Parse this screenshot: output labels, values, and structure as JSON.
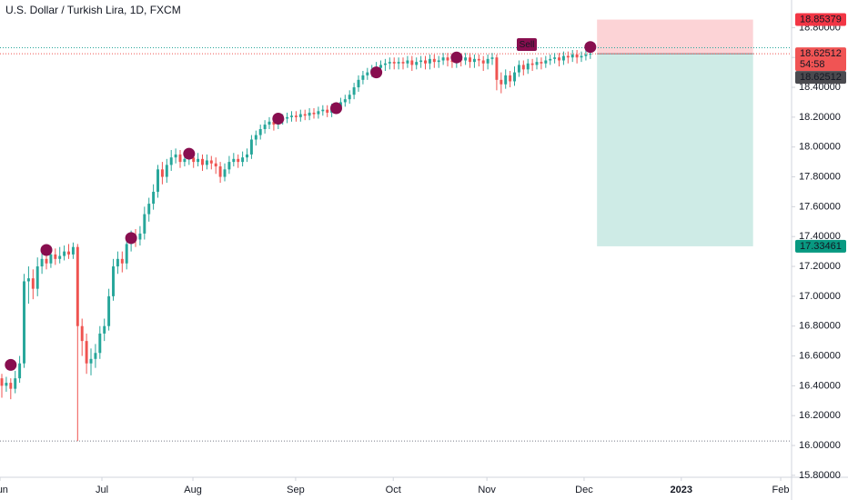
{
  "chart_data": {
    "type": "candlestick",
    "title": "U.S. Dollar / Turkish Lira, 1D, FXCM",
    "up_color": "#26a69a",
    "down_color": "#ef5350",
    "xlim": [
      -0.41,
      177.14
    ],
    "ylim": [
      15.787,
      18.985
    ],
    "xticks": [
      {
        "value": -0.4,
        "label": "Jun"
      },
      {
        "value": 22.45,
        "label": "Jul"
      },
      {
        "value": 42.86,
        "label": "Aug"
      },
      {
        "value": 65.9,
        "label": "Sep"
      },
      {
        "value": 87.8,
        "label": "Oct"
      },
      {
        "value": 108.8,
        "label": "Nov"
      },
      {
        "value": 130.6,
        "label": "Dec"
      },
      {
        "value": 152.4,
        "label": "2023"
      },
      {
        "value": 174.7,
        "label": "Feb"
      }
    ],
    "yticks": [
      {
        "value": 15.8,
        "label": "15.80000"
      },
      {
        "value": 16.0,
        "label": "16.00000"
      },
      {
        "value": 16.2,
        "label": "16.20000"
      },
      {
        "value": 16.4,
        "label": "16.40000"
      },
      {
        "value": 16.6,
        "label": "16.60000"
      },
      {
        "value": 16.8,
        "label": "16.80000"
      },
      {
        "value": 17.0,
        "label": "17.00000"
      },
      {
        "value": 17.2,
        "label": "17.20000"
      },
      {
        "value": 17.4,
        "label": "17.40000"
      },
      {
        "value": 17.6,
        "label": "17.60000"
      },
      {
        "value": 17.8,
        "label": "17.80000"
      },
      {
        "value": 18.0,
        "label": "18.00000"
      },
      {
        "value": 18.2,
        "label": "18.20000"
      },
      {
        "value": 18.4,
        "label": "18.40000"
      },
      {
        "value": 18.6,
        "label": "18.60000"
      },
      {
        "value": 18.8,
        "label": "18.80000"
      }
    ],
    "open": [
      16.45,
      16.4,
      16.42,
      16.38,
      16.45,
      16.55,
      17.1,
      17.12,
      17.05,
      17.2,
      17.25,
      17.22,
      17.28,
      17.25,
      17.27,
      17.3,
      17.28,
      17.33,
      16.8,
      16.7,
      16.55,
      16.58,
      16.62,
      16.75,
      16.8,
      17.0,
      17.2,
      17.25,
      17.22,
      17.35,
      17.4,
      17.38,
      17.42,
      17.55,
      17.62,
      17.7,
      17.85,
      17.8,
      17.88,
      17.93,
      17.95,
      17.9,
      17.92,
      17.93,
      17.9,
      17.92,
      17.88,
      17.91,
      17.89,
      17.87,
      17.8,
      17.85,
      17.9,
      17.92,
      17.9,
      17.93,
      17.95,
      18.05,
      18.08,
      18.12,
      18.15,
      18.17,
      18.15,
      18.18,
      18.19,
      18.2,
      18.21,
      18.2,
      18.22,
      18.21,
      18.23,
      18.22,
      18.24,
      18.25,
      18.23,
      18.26,
      18.27,
      18.3,
      18.32,
      18.35,
      18.4,
      18.45,
      18.48,
      18.5,
      18.52,
      18.53,
      18.55,
      18.56,
      18.57,
      18.56,
      18.57,
      18.56,
      18.58,
      18.55,
      18.57,
      18.58,
      18.56,
      18.59,
      18.57,
      18.58,
      18.6,
      18.58,
      18.57,
      18.59,
      18.58,
      18.6,
      18.57,
      18.59,
      18.58,
      18.56,
      18.59,
      18.6,
      18.45,
      18.42,
      18.48,
      18.44,
      18.5,
      18.55,
      18.52,
      18.56,
      18.55,
      18.57,
      18.56,
      18.58,
      18.59,
      18.6,
      18.58,
      18.61,
      18.6,
      18.62,
      18.6,
      18.61,
      18.62
    ],
    "high": [
      16.48,
      16.46,
      16.45,
      16.5,
      16.6,
      17.15,
      17.2,
      17.18,
      17.26,
      17.3,
      17.3,
      17.32,
      17.32,
      17.33,
      17.34,
      17.35,
      17.36,
      17.35,
      16.85,
      16.75,
      16.65,
      16.68,
      16.8,
      16.85,
      17.05,
      17.25,
      17.3,
      17.3,
      17.4,
      17.44,
      17.45,
      17.47,
      17.6,
      17.66,
      17.75,
      17.88,
      17.9,
      17.92,
      17.98,
      17.99,
      17.98,
      17.96,
      17.97,
      17.96,
      17.96,
      17.95,
      17.95,
      17.94,
      17.93,
      17.9,
      17.89,
      17.94,
      17.96,
      17.95,
      17.97,
      17.99,
      18.08,
      18.11,
      18.15,
      18.18,
      18.2,
      18.2,
      18.21,
      18.22,
      18.23,
      18.24,
      18.24,
      18.25,
      18.25,
      18.26,
      18.26,
      18.27,
      18.28,
      18.28,
      18.29,
      18.3,
      18.33,
      18.35,
      18.38,
      18.43,
      18.48,
      18.51,
      18.53,
      18.55,
      18.57,
      18.58,
      18.59,
      18.6,
      18.6,
      18.6,
      18.6,
      18.61,
      18.61,
      18.6,
      18.61,
      18.61,
      18.62,
      18.62,
      18.61,
      18.63,
      18.63,
      18.61,
      18.62,
      18.62,
      18.63,
      18.63,
      18.62,
      18.62,
      18.61,
      18.62,
      18.63,
      18.62,
      18.5,
      18.52,
      18.51,
      18.54,
      18.58,
      18.58,
      18.59,
      18.59,
      18.6,
      18.6,
      18.61,
      18.62,
      18.63,
      18.63,
      18.64,
      18.64,
      18.65,
      18.65,
      18.64,
      18.65,
      18.65
    ],
    "low": [
      16.32,
      16.36,
      16.31,
      16.35,
      16.42,
      16.52,
      16.95,
      16.98,
      17.0,
      17.15,
      17.18,
      17.19,
      17.21,
      17.22,
      17.24,
      17.25,
      17.25,
      16.03,
      16.6,
      16.48,
      16.47,
      16.52,
      16.58,
      16.7,
      16.77,
      16.97,
      17.15,
      17.16,
      17.18,
      17.3,
      17.33,
      17.34,
      17.38,
      17.5,
      17.58,
      17.66,
      17.75,
      17.76,
      17.84,
      17.89,
      17.86,
      17.87,
      17.88,
      17.86,
      17.87,
      17.84,
      17.85,
      17.85,
      17.82,
      17.76,
      17.77,
      17.82,
      17.87,
      17.86,
      17.87,
      17.9,
      17.92,
      18.01,
      18.05,
      18.09,
      18.12,
      18.11,
      18.12,
      18.15,
      18.16,
      18.17,
      18.17,
      18.17,
      18.18,
      18.18,
      18.19,
      18.19,
      18.21,
      18.2,
      18.2,
      18.23,
      18.24,
      18.27,
      18.29,
      18.32,
      18.37,
      18.42,
      18.45,
      18.47,
      18.48,
      18.5,
      18.51,
      18.52,
      18.52,
      18.52,
      18.52,
      18.53,
      18.51,
      18.52,
      18.53,
      18.52,
      18.52,
      18.53,
      18.53,
      18.55,
      18.54,
      18.53,
      18.53,
      18.54,
      18.55,
      18.53,
      18.53,
      18.54,
      18.51,
      18.52,
      18.55,
      18.38,
      18.36,
      18.39,
      18.4,
      18.41,
      18.47,
      18.48,
      18.49,
      18.51,
      18.52,
      18.52,
      18.53,
      18.55,
      18.56,
      18.54,
      18.55,
      18.56,
      18.57,
      18.56,
      18.57,
      18.58,
      18.59
    ],
    "close": [
      16.4,
      16.42,
      16.38,
      16.45,
      16.55,
      17.1,
      17.12,
      17.05,
      17.2,
      17.25,
      17.22,
      17.28,
      17.25,
      17.27,
      17.3,
      17.28,
      17.33,
      16.8,
      16.7,
      16.55,
      16.58,
      16.62,
      16.75,
      16.8,
      17.0,
      17.2,
      17.25,
      17.22,
      17.35,
      17.4,
      17.38,
      17.42,
      17.55,
      17.62,
      17.7,
      17.85,
      17.8,
      17.88,
      17.93,
      17.95,
      17.9,
      17.92,
      17.93,
      17.9,
      17.92,
      17.88,
      17.91,
      17.89,
      17.87,
      17.8,
      17.85,
      17.9,
      17.92,
      17.9,
      17.93,
      17.95,
      18.05,
      18.08,
      18.12,
      18.15,
      18.17,
      18.15,
      18.18,
      18.19,
      18.2,
      18.21,
      18.2,
      18.22,
      18.21,
      18.23,
      18.22,
      18.24,
      18.25,
      18.23,
      18.26,
      18.27,
      18.3,
      18.32,
      18.35,
      18.4,
      18.45,
      18.48,
      18.5,
      18.52,
      18.53,
      18.55,
      18.56,
      18.57,
      18.56,
      18.57,
      18.56,
      18.58,
      18.55,
      18.57,
      18.58,
      18.56,
      18.59,
      18.57,
      18.58,
      18.6,
      18.58,
      18.57,
      18.59,
      18.58,
      18.6,
      18.57,
      18.59,
      18.58,
      18.56,
      18.59,
      18.6,
      18.45,
      18.42,
      18.48,
      18.44,
      18.5,
      18.55,
      18.52,
      18.56,
      18.55,
      18.57,
      18.56,
      18.58,
      18.59,
      18.6,
      18.58,
      18.61,
      18.6,
      18.62,
      18.6,
      18.61,
      18.62,
      18.62512
    ],
    "signals": {
      "color": "#880e4f",
      "x": [
        2,
        10,
        29,
        42,
        62,
        75,
        84,
        102,
        132
      ],
      "values": [
        16.54,
        17.31,
        17.39,
        17.955,
        18.19,
        18.26,
        18.5,
        18.6,
        18.67
      ]
    },
    "sell_label": "Sell",
    "countdown": "54:58",
    "position": {
      "x": [
        133.5,
        168.5
      ],
      "entry": 18.62512,
      "stop": 18.85379,
      "target": 17.33461
    },
    "dotted_lines": [
      18.665,
      16.03
    ]
  }
}
